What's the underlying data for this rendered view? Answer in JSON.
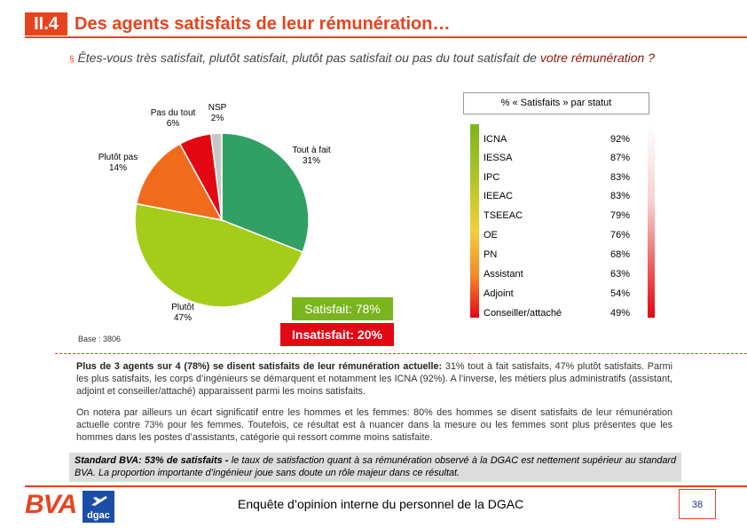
{
  "header": {
    "section": "II.4",
    "title": "Des agents satisfaits de leur rémunération…"
  },
  "question": {
    "bullet": "§",
    "text": "Êtes-vous très satisfait, plutôt satisfait, plutôt pas satisfait ou pas du tout satisfait de ",
    "emphasis": "votre rémunération ?"
  },
  "chart_data": [
    {
      "type": "pie",
      "slices": [
        {
          "name": "Tout à fait",
          "value": 31,
          "label": "31%",
          "color": "#31a064"
        },
        {
          "name": "Plutôt",
          "value": 47,
          "label": "47%",
          "color": "#a6cc1a"
        },
        {
          "name": "Plutôt pas",
          "value": 14,
          "label": "14%",
          "color": "#f26b1d"
        },
        {
          "name": "Pas du tout",
          "value": 6,
          "label": "6%",
          "color": "#e30613"
        },
        {
          "name": "NSP",
          "value": 2,
          "label": "2%",
          "color": "#c8c8c8"
        }
      ],
      "base": "Base : 3806"
    },
    {
      "type": "table",
      "title": "% « Satisfaits » par statut",
      "rows": [
        {
          "name": "ICNA",
          "value": "92%"
        },
        {
          "name": "IESSA",
          "value": "87%"
        },
        {
          "name": "IPC",
          "value": "83%"
        },
        {
          "name": "IEEAC",
          "value": "83%"
        },
        {
          "name": "TSEEAC",
          "value": "79%"
        },
        {
          "name": "OE",
          "value": "76%"
        },
        {
          "name": "PN",
          "value": "68%"
        },
        {
          "name": "Assistant",
          "value": "63%"
        },
        {
          "name": "Adjoint",
          "value": "54%"
        },
        {
          "name": "Conseiller/attaché",
          "value": "49%"
        }
      ]
    }
  ],
  "summary": {
    "satisfied": "Satisfait: 78%",
    "unsatisfied": "Insatisfait: 20%"
  },
  "paragraphs": {
    "p1_bold": "Plus de 3 agents sur 4 (78%) se disent satisfaits de leur rémunération actuelle:",
    "p1_rest": " 31% tout à fait satisfaits, 47% plutôt satisfaits. Parmi les plus satisfaits, les corps d’ingénieurs se démarquent et notamment les ICNA (92%). A l’inverse, les métiers plus administratifs (assistant, adjoint et conseiller/attaché) apparaissent parmi les moins satisfaits.",
    "p2": "On notera par ailleurs un écart significatif entre les hommes et les femmes: 80% des hommes se disent satisfaits de leur rémunération actuelle contre 73% pour les femmes. Toutefois, ce résultat est à nuancer dans la mesure ou les femmes sont plus présentes que les hommes dans les postes d’assistants, catégorie qui ressort comme moins satisfaite.",
    "std_bold": "Standard BVA: 53% de satisfaits -",
    "std_rest": " le taux de satisfaction quant à sa rémunération observé à la DGAC est nettement supérieur au standard BVA. La proportion importante d’ingénieur joue sans doute un rôle majeur dans ce résultat."
  },
  "footer": {
    "brand": "BVA",
    "partner": "dgac",
    "text": "Enquête d’opinion interne du personnel de la DGAC",
    "page": "38"
  }
}
